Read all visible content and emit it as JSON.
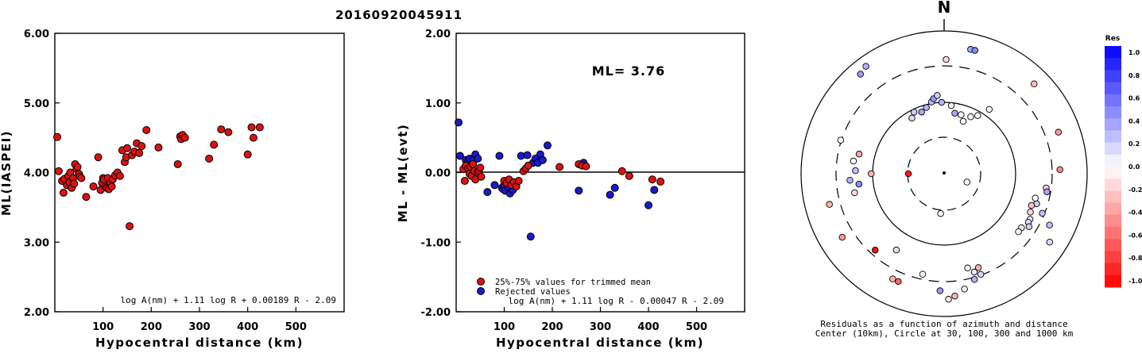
{
  "title": "20160920045911",
  "chart_data": [
    {
      "type": "scatter",
      "xlabel": "Hypocentral distance (km)",
      "ylabel": "ML(IASPEI)",
      "xlim": [
        0,
        600
      ],
      "ylim": [
        2.0,
        6.0
      ],
      "xticks": [
        100,
        200,
        300,
        400,
        500
      ],
      "yticks": [
        "2.00",
        "3.00",
        "4.00",
        "5.00",
        "6.00"
      ],
      "annotation": "log A(nm) + 1.11 log R + 0.00189 R - 2.09",
      "points": [
        [
          5,
          4.51
        ],
        [
          8,
          4.02
        ],
        [
          15,
          3.88
        ],
        [
          18,
          3.71
        ],
        [
          20,
          3.91
        ],
        [
          25,
          3.82
        ],
        [
          28,
          3.95
        ],
        [
          30,
          3.86
        ],
        [
          32,
          4.0
        ],
        [
          35,
          3.78
        ],
        [
          38,
          3.92
        ],
        [
          40,
          3.84
        ],
        [
          42,
          4.12
        ],
        [
          45,
          4.05
        ],
        [
          47,
          4.08
        ],
        [
          50,
          3.98
        ],
        [
          52,
          3.94
        ],
        [
          55,
          3.92
        ],
        [
          65,
          3.65
        ],
        [
          80,
          3.8
        ],
        [
          90,
          4.22
        ],
        [
          95,
          3.75
        ],
        [
          98,
          3.85
        ],
        [
          100,
          3.92
        ],
        [
          102,
          3.9
        ],
        [
          105,
          3.8
        ],
        [
          108,
          3.78
        ],
        [
          110,
          3.92
        ],
        [
          112,
          3.76
        ],
        [
          115,
          3.85
        ],
        [
          118,
          3.8
        ],
        [
          120,
          3.9
        ],
        [
          125,
          3.96
        ],
        [
          130,
          4.0
        ],
        [
          135,
          3.95
        ],
        [
          140,
          4.32
        ],
        [
          145,
          4.15
        ],
        [
          148,
          4.22
        ],
        [
          150,
          4.35
        ],
        [
          155,
          3.23
        ],
        [
          160,
          4.25
        ],
        [
          165,
          4.3
        ],
        [
          170,
          4.42
        ],
        [
          175,
          4.28
        ],
        [
          180,
          4.38
        ],
        [
          190,
          4.61
        ],
        [
          215,
          4.36
        ],
        [
          255,
          4.12
        ],
        [
          260,
          4.52
        ],
        [
          262,
          4.48
        ],
        [
          265,
          4.54
        ],
        [
          270,
          4.5
        ],
        [
          320,
          4.2
        ],
        [
          330,
          4.4
        ],
        [
          345,
          4.62
        ],
        [
          360,
          4.58
        ],
        [
          400,
          4.26
        ],
        [
          408,
          4.65
        ],
        [
          412,
          4.5
        ],
        [
          425,
          4.65
        ]
      ]
    },
    {
      "type": "scatter",
      "xlabel": "Hypocentral distance (km)",
      "ylabel": "ML - ML(evt)",
      "xlim": [
        0,
        600
      ],
      "ylim": [
        -2.0,
        2.0
      ],
      "xticks": [
        100,
        200,
        300,
        400,
        500
      ],
      "yticks": [
        "-2.00",
        "-1.00",
        "0.00",
        "1.00",
        "2.00"
      ],
      "ml_label": "ML= 3.76",
      "legend": [
        "25%-75% values for trimmed mean",
        "Rejected values"
      ],
      "annotation": "log A(nm) + 1.11 log R - 0.00047 R - 2.09",
      "series": [
        {
          "name": "25%-75% values for trimmed mean",
          "color": "#dd1111",
          "points": [
            [
              15,
              0.05
            ],
            [
              18,
              -0.12
            ],
            [
              20,
              0.1
            ],
            [
              25,
              0.06
            ],
            [
              28,
              -0.02
            ],
            [
              30,
              0.08
            ],
            [
              32,
              -0.05
            ],
            [
              35,
              0.12
            ],
            [
              38,
              0.02
            ],
            [
              40,
              -0.1
            ],
            [
              45,
              0.0
            ],
            [
              47,
              0.03
            ],
            [
              50,
              0.07
            ],
            [
              52,
              -0.06
            ],
            [
              100,
              -0.12
            ],
            [
              105,
              -0.15
            ],
            [
              110,
              -0.1
            ],
            [
              115,
              -0.18
            ],
            [
              120,
              -0.14
            ],
            [
              125,
              -0.2
            ],
            [
              130,
              -0.12
            ],
            [
              140,
              0.02
            ],
            [
              145,
              0.06
            ],
            [
              150,
              0.1
            ],
            [
              215,
              0.08
            ],
            [
              255,
              0.12
            ],
            [
              262,
              0.1
            ],
            [
              270,
              0.09
            ],
            [
              345,
              0.02
            ],
            [
              360,
              -0.05
            ],
            [
              408,
              -0.1
            ],
            [
              425,
              -0.13
            ]
          ]
        },
        {
          "name": "Rejected values",
          "color": "#1a1acc",
          "points": [
            [
              5,
              0.72
            ],
            [
              8,
              0.24
            ],
            [
              20,
              0.18
            ],
            [
              25,
              0.15
            ],
            [
              28,
              0.2
            ],
            [
              35,
              0.18
            ],
            [
              40,
              0.26
            ],
            [
              45,
              0.2
            ],
            [
              65,
              -0.28
            ],
            [
              80,
              -0.18
            ],
            [
              90,
              0.24
            ],
            [
              95,
              -0.22
            ],
            [
              98,
              -0.24
            ],
            [
              100,
              -0.18
            ],
            [
              102,
              -0.26
            ],
            [
              108,
              -0.2
            ],
            [
              112,
              -0.3
            ],
            [
              118,
              -0.25
            ],
            [
              135,
              0.24
            ],
            [
              148,
              0.25
            ],
            [
              155,
              -0.92
            ],
            [
              160,
              0.14
            ],
            [
              165,
              0.2
            ],
            [
              170,
              0.14
            ],
            [
              175,
              0.26
            ],
            [
              180,
              0.18
            ],
            [
              190,
              0.39
            ],
            [
              255,
              -0.26
            ],
            [
              265,
              0.14
            ],
            [
              320,
              -0.32
            ],
            [
              330,
              -0.22
            ],
            [
              400,
              -0.47
            ],
            [
              412,
              -0.25
            ]
          ]
        }
      ]
    },
    {
      "type": "polar-scatter",
      "north_label": "N",
      "caption": [
        "Residuals as a function of azimuth and distance",
        "Center (10km), Circle at 30, 100, 300 and 1000 km"
      ],
      "colorbar_title": "Res",
      "colorbar_ticks": [
        "1.0",
        "0.8",
        "0.6",
        "0.4",
        "0.2",
        "0.0",
        "-0.2",
        "-0.4",
        "-0.6",
        "-0.8",
        "-1.0"
      ],
      "points": [
        [
          1,
          0.8,
          -0.15
        ],
        [
          6,
          0.48,
          0.05
        ],
        [
          10,
          0.43,
          0.35
        ],
        [
          16,
          0.43,
          0.05
        ],
        [
          20,
          0.39,
          -0.05
        ],
        [
          25,
          0.44,
          -0.05
        ],
        [
          30,
          0.47,
          0.0
        ],
        [
          35,
          0.55,
          0.05
        ],
        [
          12,
          0.89,
          0.35
        ],
        [
          14,
          0.89,
          0.45
        ],
        [
          45,
          0.89,
          -0.25
        ],
        [
          -20,
          0.46,
          0.35
        ],
        [
          -15,
          0.48,
          0.3
        ],
        [
          -10,
          0.51,
          0.25
        ],
        [
          -8,
          0.53,
          0.4
        ],
        [
          -5,
          0.55,
          0.2
        ],
        [
          -2,
          0.5,
          0.3
        ],
        [
          -26,
          0.48,
          0.2
        ],
        [
          -30,
          0.45,
          0.15
        ],
        [
          -36,
          0.93,
          0.3
        ],
        [
          -40,
          0.91,
          0.4
        ],
        [
          70,
          0.85,
          -0.4
        ],
        [
          88,
          0.81,
          -0.45
        ],
        [
          98,
          0.72,
          -0.2
        ],
        [
          100,
          0.73,
          0.35
        ],
        [
          108,
          0.68,
          0.2
        ],
        [
          105,
          0.66,
          0.0
        ],
        [
          110,
          0.65,
          -0.25
        ],
        [
          118,
          0.68,
          0.05
        ],
        [
          120,
          0.68,
          0.15
        ],
        [
          122,
          0.7,
          0.2
        ],
        [
          125,
          0.66,
          0.1
        ],
        [
          128,
          0.66,
          0.0
        ],
        [
          114,
          0.66,
          -0.15
        ],
        [
          112,
          0.74,
          0.25
        ],
        [
          116,
          0.82,
          0.25
        ],
        [
          123,
          0.88,
          0.15
        ],
        [
          160,
          0.7,
          -0.3
        ],
        [
          163,
          0.72,
          0.1
        ],
        [
          166,
          0.68,
          0.05
        ],
        [
          160,
          0.75,
          0.15
        ],
        [
          164,
          0.77,
          0.3
        ],
        [
          170,
          0.82,
          0.05
        ],
        [
          175,
          0.86,
          -0.3
        ],
        [
          178,
          0.88,
          -0.1
        ],
        [
          182,
          0.82,
          0.4
        ],
        [
          192,
          0.72,
          0.0
        ],
        [
          203,
          0.82,
          -0.6
        ],
        [
          206,
          0.82,
          -0.3
        ],
        [
          212,
          0.63,
          -0.15
        ],
        [
          222,
          0.72,
          -0.95
        ],
        [
          238,
          0.84,
          -0.4
        ],
        [
          255,
          0.83,
          -0.3
        ],
        [
          258,
          0.64,
          -0.15
        ],
        [
          263,
          0.6,
          0.45
        ],
        [
          266,
          0.66,
          0.3
        ],
        [
          272,
          0.62,
          0.25
        ],
        [
          278,
          0.64,
          0.0
        ],
        [
          283,
          0.61,
          -0.35
        ],
        [
          288,
          0.76,
          0.0
        ],
        [
          270,
          0.25,
          -0.9
        ],
        [
          270,
          0.51,
          -0.3
        ],
        [
          185,
          0.28,
          0.05
        ],
        [
          110,
          0.17,
          0.0
        ]
      ]
    }
  ]
}
